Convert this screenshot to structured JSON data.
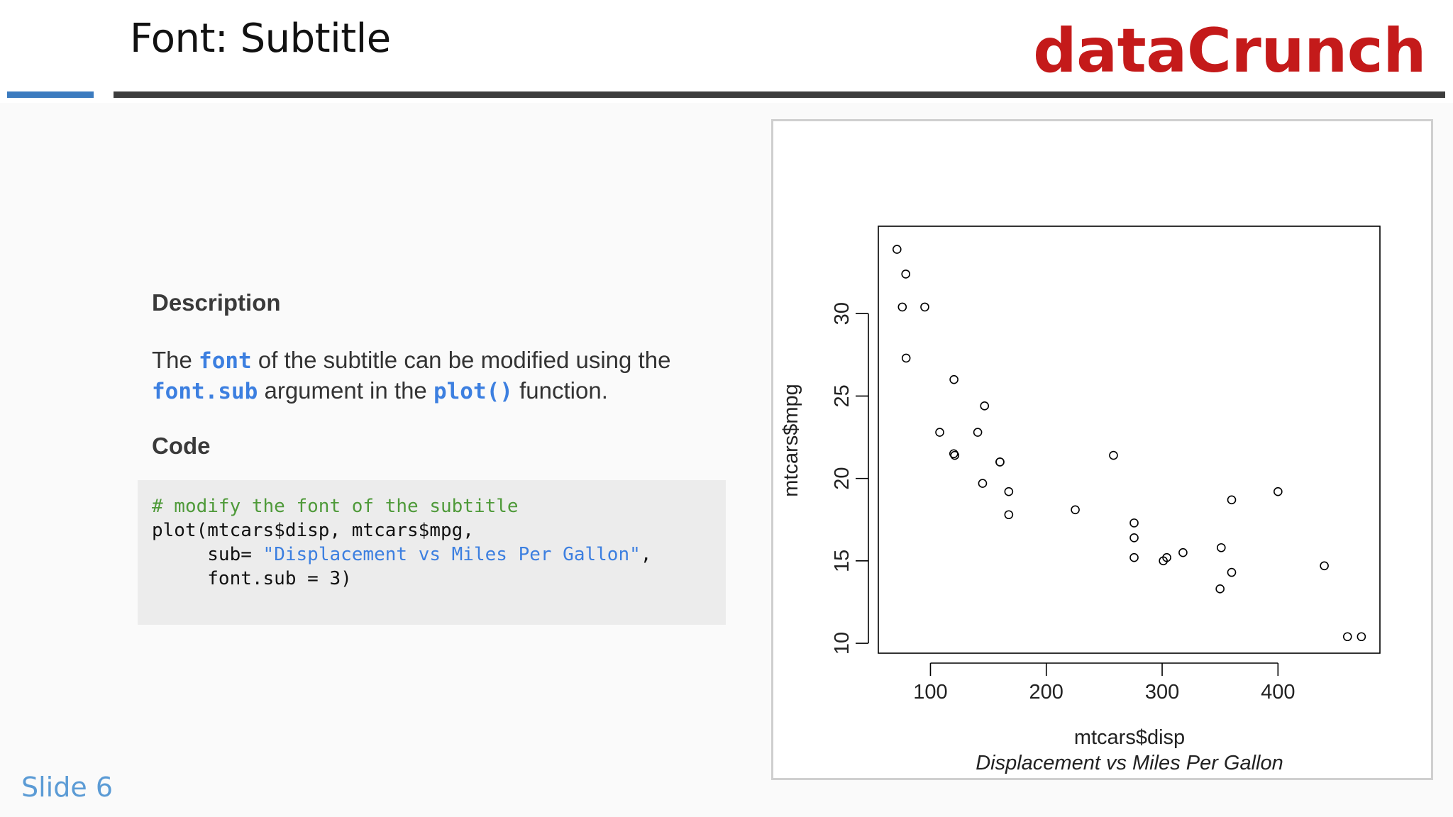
{
  "header": {
    "title": "Font: Subtitle",
    "brand": "dataCrunch"
  },
  "description": {
    "heading": "Description",
    "p1": "The ",
    "kw1": "font",
    "p2": "  of the subtitle can be modified using the",
    "kw2": "font.sub",
    "p3": " argument in the ",
    "kw3": "plot()",
    "p4": " function."
  },
  "code": {
    "heading": "Code",
    "comment": "# modify the font of the subtitle",
    "line2": "plot(mtcars$disp, mtcars$mpg,",
    "line3_prefix": "     sub= ",
    "line3_string": "\"Displacement vs Miles Per Gallon\"",
    "line3_suffix": ",",
    "line4": "     font.sub = 3)"
  },
  "footer": {
    "slide_label": "Slide 6"
  },
  "colors": {
    "brand": "#c41a1a",
    "accent_blue": "#3c7bbf",
    "keyword": "#3c7fe0",
    "comment": "#4f9a3a"
  },
  "chart_data": {
    "type": "scatter",
    "xlabel": "mtcars$disp",
    "ylabel": "mtcars$mpg",
    "subtitle": "Displacement vs Miles Per Gallon",
    "xlim": [
      55,
      488
    ],
    "ylim": [
      9.4,
      35.3
    ],
    "xticks": [
      100,
      200,
      300,
      400
    ],
    "yticks": [
      10,
      15,
      20,
      25,
      30
    ],
    "grid": false,
    "x": [
      160,
      160,
      108,
      258,
      360,
      225,
      360,
      146.7,
      140.8,
      167.6,
      167.6,
      275.8,
      275.8,
      275.8,
      472,
      460,
      440,
      78.7,
      75.7,
      71.1,
      120.1,
      318,
      304,
      350,
      400,
      79,
      120.3,
      95.1,
      351,
      145,
      301,
      121
    ],
    "y": [
      21,
      21,
      22.8,
      21.4,
      18.7,
      18.1,
      14.3,
      24.4,
      22.8,
      19.2,
      17.8,
      16.4,
      17.3,
      15.2,
      10.4,
      10.4,
      14.7,
      32.4,
      30.4,
      33.9,
      21.5,
      15.5,
      15.2,
      13.3,
      19.2,
      27.3,
      26,
      30.4,
      15.8,
      19.7,
      15,
      21.4
    ]
  }
}
